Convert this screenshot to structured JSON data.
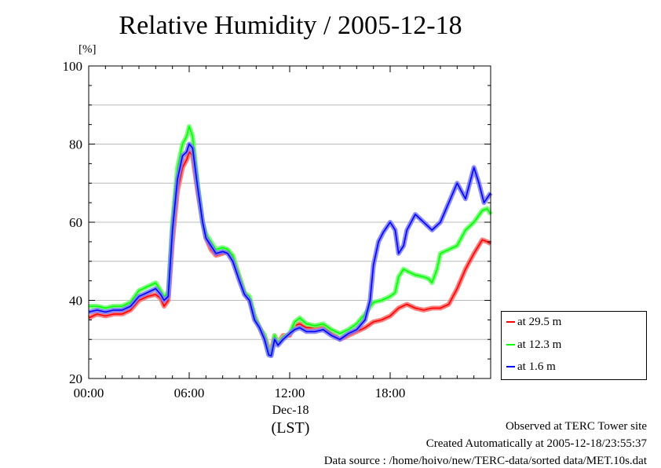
{
  "chart_data": {
    "type": "line",
    "title": "Relative Humidity / 2005-12-18",
    "ylabel": "[%]",
    "xlabel_date": "Dec-18",
    "xlabel_tz": "(LST)",
    "ylim": [
      20,
      100
    ],
    "yticks": [
      "20",
      "40",
      "60",
      "80",
      "100"
    ],
    "xlim_hours": [
      0,
      24
    ],
    "xticks": [
      {
        "hour": 0,
        "label": "00:00"
      },
      {
        "hour": 6,
        "label": "06:00"
      },
      {
        "hour": 12,
        "label": "12:00"
      },
      {
        "hour": 18,
        "label": "18:00"
      }
    ],
    "grid": true,
    "legend_position": "right-bottom",
    "series": [
      {
        "name": "at 29.5 m",
        "color": "#ff0000",
        "points": [
          [
            0,
            35.5
          ],
          [
            0.5,
            36.5
          ],
          [
            1,
            36
          ],
          [
            1.5,
            36.5
          ],
          [
            2,
            36.5
          ],
          [
            2.5,
            37.5
          ],
          [
            3,
            40
          ],
          [
            3.5,
            41
          ],
          [
            4,
            41.5
          ],
          [
            4.3,
            40.5
          ],
          [
            4.5,
            38.5
          ],
          [
            4.75,
            40
          ],
          [
            5,
            55
          ],
          [
            5.3,
            68
          ],
          [
            5.6,
            74
          ],
          [
            5.85,
            76
          ],
          [
            6,
            78
          ],
          [
            6.2,
            77
          ],
          [
            6.5,
            68
          ],
          [
            6.8,
            60
          ],
          [
            7,
            56
          ],
          [
            7.3,
            53
          ],
          [
            7.6,
            51.5
          ],
          [
            8,
            52
          ],
          [
            8.3,
            52.5
          ],
          [
            8.6,
            51
          ],
          [
            9,
            46
          ],
          [
            9.3,
            42
          ],
          [
            9.6,
            40
          ],
          [
            9.9,
            36
          ],
          [
            10.2,
            33
          ],
          [
            10.5,
            31
          ],
          [
            10.75,
            27.5
          ],
          [
            10.9,
            27
          ],
          [
            11.1,
            31
          ],
          [
            11.3,
            29
          ],
          [
            11.6,
            31
          ],
          [
            12,
            31
          ],
          [
            12.3,
            33.5
          ],
          [
            12.6,
            34
          ],
          [
            13,
            33
          ],
          [
            13.5,
            33
          ],
          [
            14,
            33.5
          ],
          [
            14.5,
            31.5
          ],
          [
            15,
            30
          ],
          [
            15.5,
            31
          ],
          [
            16,
            32
          ],
          [
            16.5,
            33
          ],
          [
            17,
            34.5
          ],
          [
            17.5,
            35
          ],
          [
            18,
            36
          ],
          [
            18.5,
            38
          ],
          [
            19,
            39
          ],
          [
            19.5,
            38
          ],
          [
            20,
            37.5
          ],
          [
            20.5,
            38
          ],
          [
            21,
            38
          ],
          [
            21.5,
            39
          ],
          [
            22,
            43
          ],
          [
            22.5,
            48
          ],
          [
            23,
            52
          ],
          [
            23.5,
            55.5
          ],
          [
            23.8,
            55
          ],
          [
            24,
            54.5
          ]
        ]
      },
      {
        "name": "at 12.3 m",
        "color": "#00ff00",
        "points": [
          [
            0,
            38.5
          ],
          [
            0.5,
            38.5
          ],
          [
            1,
            38
          ],
          [
            1.5,
            38.5
          ],
          [
            2,
            38.5
          ],
          [
            2.5,
            39.5
          ],
          [
            3,
            42.5
          ],
          [
            3.5,
            43.5
          ],
          [
            4,
            44.5
          ],
          [
            4.3,
            42.5
          ],
          [
            4.5,
            41
          ],
          [
            4.75,
            42
          ],
          [
            5,
            60
          ],
          [
            5.3,
            74
          ],
          [
            5.6,
            80
          ],
          [
            5.85,
            82
          ],
          [
            6,
            84.5
          ],
          [
            6.2,
            82
          ],
          [
            6.5,
            70
          ],
          [
            6.8,
            60
          ],
          [
            7,
            57
          ],
          [
            7.3,
            55
          ],
          [
            7.6,
            53
          ],
          [
            8,
            53.5
          ],
          [
            8.3,
            53
          ],
          [
            8.6,
            51.5
          ],
          [
            9,
            46
          ],
          [
            9.3,
            42
          ],
          [
            9.6,
            41
          ],
          [
            9.9,
            36
          ],
          [
            10.2,
            33
          ],
          [
            10.5,
            31
          ],
          [
            10.75,
            26.5
          ],
          [
            10.9,
            26
          ],
          [
            11.1,
            31
          ],
          [
            11.3,
            29
          ],
          [
            11.6,
            30.5
          ],
          [
            12,
            31.5
          ],
          [
            12.3,
            34.5
          ],
          [
            12.6,
            35.5
          ],
          [
            13,
            34
          ],
          [
            13.5,
            33.5
          ],
          [
            14,
            34
          ],
          [
            14.5,
            32.5
          ],
          [
            15,
            31.5
          ],
          [
            15.5,
            32.5
          ],
          [
            16,
            34
          ],
          [
            16.5,
            36.5
          ],
          [
            17,
            39.5
          ],
          [
            17.5,
            40
          ],
          [
            18,
            41
          ],
          [
            18.3,
            42
          ],
          [
            18.5,
            46
          ],
          [
            18.8,
            48
          ],
          [
            19,
            47.5
          ],
          [
            19.5,
            46.5
          ],
          [
            20,
            46
          ],
          [
            20.3,
            45.5
          ],
          [
            20.5,
            44.5
          ],
          [
            20.8,
            48
          ],
          [
            21,
            52
          ],
          [
            21.5,
            53
          ],
          [
            22,
            54
          ],
          [
            22.5,
            58
          ],
          [
            23,
            60
          ],
          [
            23.5,
            63
          ],
          [
            23.8,
            63.5
          ],
          [
            24,
            62
          ]
        ]
      },
      {
        "name": "at 1.6 m",
        "color": "#0000ff",
        "points": [
          [
            0,
            37
          ],
          [
            0.5,
            37.5
          ],
          [
            1,
            37
          ],
          [
            1.5,
            37.5
          ],
          [
            2,
            37.5
          ],
          [
            2.5,
            38.5
          ],
          [
            3,
            41
          ],
          [
            3.5,
            42
          ],
          [
            4,
            43
          ],
          [
            4.3,
            41.5
          ],
          [
            4.5,
            40
          ],
          [
            4.75,
            41
          ],
          [
            5,
            58
          ],
          [
            5.3,
            71
          ],
          [
            5.6,
            77
          ],
          [
            5.85,
            78
          ],
          [
            6,
            80
          ],
          [
            6.2,
            79
          ],
          [
            6.5,
            69
          ],
          [
            6.8,
            60
          ],
          [
            7,
            56
          ],
          [
            7.3,
            54
          ],
          [
            7.6,
            52
          ],
          [
            8,
            52.5
          ],
          [
            8.3,
            52
          ],
          [
            8.6,
            50
          ],
          [
            9,
            45
          ],
          [
            9.3,
            41.5
          ],
          [
            9.6,
            40
          ],
          [
            9.9,
            35
          ],
          [
            10.2,
            33
          ],
          [
            10.5,
            30
          ],
          [
            10.75,
            26
          ],
          [
            10.9,
            25.8
          ],
          [
            11.1,
            30
          ],
          [
            11.3,
            28.5
          ],
          [
            11.6,
            30
          ],
          [
            12,
            31.5
          ],
          [
            12.3,
            32.5
          ],
          [
            12.6,
            33
          ],
          [
            13,
            32
          ],
          [
            13.5,
            32
          ],
          [
            14,
            32.5
          ],
          [
            14.5,
            31
          ],
          [
            15,
            30
          ],
          [
            15.5,
            31.5
          ],
          [
            16,
            32.5
          ],
          [
            16.5,
            35
          ],
          [
            16.8,
            40
          ],
          [
            17,
            49
          ],
          [
            17.3,
            55
          ],
          [
            17.6,
            57.5
          ],
          [
            18,
            60
          ],
          [
            18.3,
            58
          ],
          [
            18.5,
            52
          ],
          [
            18.8,
            54
          ],
          [
            19,
            58
          ],
          [
            19.5,
            62
          ],
          [
            20,
            60
          ],
          [
            20.5,
            58
          ],
          [
            21,
            60
          ],
          [
            21.5,
            65
          ],
          [
            22,
            70
          ],
          [
            22.5,
            66
          ],
          [
            23,
            74
          ],
          [
            23.3,
            70
          ],
          [
            23.6,
            65
          ],
          [
            24,
            67.5
          ]
        ]
      }
    ]
  },
  "footer": {
    "line1": "Observed at TERC Tower site",
    "line2": "Created Automatically at 2005-12-18/23:55:37",
    "line3": "Data source : /home/hoivo/new/TERC-data/sorted  data/MET.10s.dat"
  }
}
